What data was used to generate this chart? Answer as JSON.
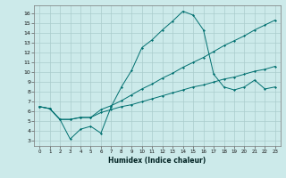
{
  "xlabel": "Humidex (Indice chaleur)",
  "background_color": "#cceaea",
  "grid_color": "#aacccc",
  "line_color": "#007070",
  "xlim": [
    -0.5,
    23.5
  ],
  "ylim": [
    2.5,
    16.8
  ],
  "xticks": [
    0,
    1,
    2,
    3,
    4,
    5,
    6,
    7,
    8,
    9,
    10,
    11,
    12,
    13,
    14,
    15,
    16,
    17,
    18,
    19,
    20,
    21,
    22,
    23
  ],
  "yticks": [
    3,
    4,
    5,
    6,
    7,
    8,
    9,
    10,
    11,
    12,
    13,
    14,
    15,
    16
  ],
  "line_bottom_x": [
    0,
    1,
    2,
    3,
    4,
    5,
    6,
    7,
    8,
    9,
    10,
    11,
    12,
    13,
    14,
    15,
    16,
    17,
    18,
    19,
    20,
    21,
    22,
    23
  ],
  "line_bottom_y": [
    6.5,
    6.3,
    5.2,
    5.2,
    5.4,
    5.4,
    5.9,
    6.2,
    6.5,
    6.7,
    7.0,
    7.3,
    7.6,
    7.9,
    8.2,
    8.5,
    8.7,
    9.0,
    9.3,
    9.5,
    9.8,
    10.1,
    10.3,
    10.6
  ],
  "line_mid_x": [
    0,
    1,
    2,
    3,
    4,
    5,
    6,
    7,
    8,
    9,
    10,
    11,
    12,
    13,
    14,
    15,
    16,
    17,
    18,
    19,
    20,
    21,
    22,
    23
  ],
  "line_mid_y": [
    6.5,
    6.3,
    5.2,
    5.2,
    5.4,
    5.4,
    6.2,
    6.6,
    7.1,
    7.7,
    8.3,
    8.8,
    9.4,
    9.9,
    10.5,
    11.0,
    11.5,
    12.1,
    12.7,
    13.2,
    13.7,
    14.3,
    14.8,
    15.3
  ],
  "line_main_x": [
    0,
    1,
    2,
    3,
    4,
    5,
    6,
    7,
    8,
    9,
    10,
    11,
    12,
    13,
    14,
    15,
    16,
    17,
    18,
    19,
    20,
    21,
    22,
    23
  ],
  "line_main_y": [
    6.5,
    6.3,
    5.2,
    3.2,
    4.2,
    4.5,
    3.8,
    6.5,
    8.5,
    10.2,
    12.5,
    13.3,
    14.3,
    15.2,
    16.2,
    15.8,
    14.3,
    9.8,
    8.5,
    8.2,
    8.5,
    9.2,
    8.3,
    8.5
  ]
}
